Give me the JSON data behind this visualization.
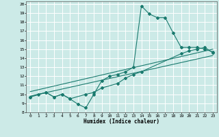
{
  "xlabel": "Humidex (Indice chaleur)",
  "bg_color": "#cceae7",
  "grid_color": "#ffffff",
  "line_color": "#1a7a6e",
  "xlim": [
    -0.5,
    23.5
  ],
  "ylim": [
    8,
    20.3
  ],
  "xticks": [
    0,
    1,
    2,
    3,
    4,
    5,
    6,
    7,
    8,
    9,
    10,
    11,
    12,
    13,
    14,
    15,
    16,
    17,
    18,
    19,
    20,
    21,
    22,
    23
  ],
  "yticks": [
    8,
    9,
    10,
    11,
    12,
    13,
    14,
    15,
    16,
    17,
    18,
    19,
    20
  ],
  "line1_x": [
    0,
    1,
    2,
    3,
    4,
    5,
    6,
    7,
    8,
    9,
    10,
    11,
    12,
    13,
    14,
    15,
    16,
    17,
    18,
    19,
    20,
    21,
    22,
    23
  ],
  "line1_y": [
    9.7,
    10.0,
    10.2,
    9.7,
    10.0,
    9.5,
    8.9,
    8.5,
    10.0,
    11.5,
    12.0,
    12.2,
    12.5,
    13.0,
    19.8,
    18.9,
    18.5,
    18.5,
    16.8,
    15.2,
    15.2,
    15.2,
    15.0,
    14.7
  ],
  "line2_x": [
    0,
    2,
    3,
    4,
    5,
    7,
    8,
    9,
    11,
    12,
    13,
    14,
    19,
    20,
    21,
    22,
    23
  ],
  "line2_y": [
    9.7,
    10.2,
    9.7,
    10.0,
    9.5,
    10.0,
    10.2,
    10.7,
    11.2,
    11.8,
    12.2,
    12.5,
    14.5,
    14.8,
    15.0,
    15.2,
    14.6
  ],
  "line3_x": [
    0,
    23
  ],
  "line3_y": [
    9.8,
    14.3
  ],
  "line4_x": [
    0,
    23
  ],
  "line4_y": [
    10.3,
    15.0
  ]
}
